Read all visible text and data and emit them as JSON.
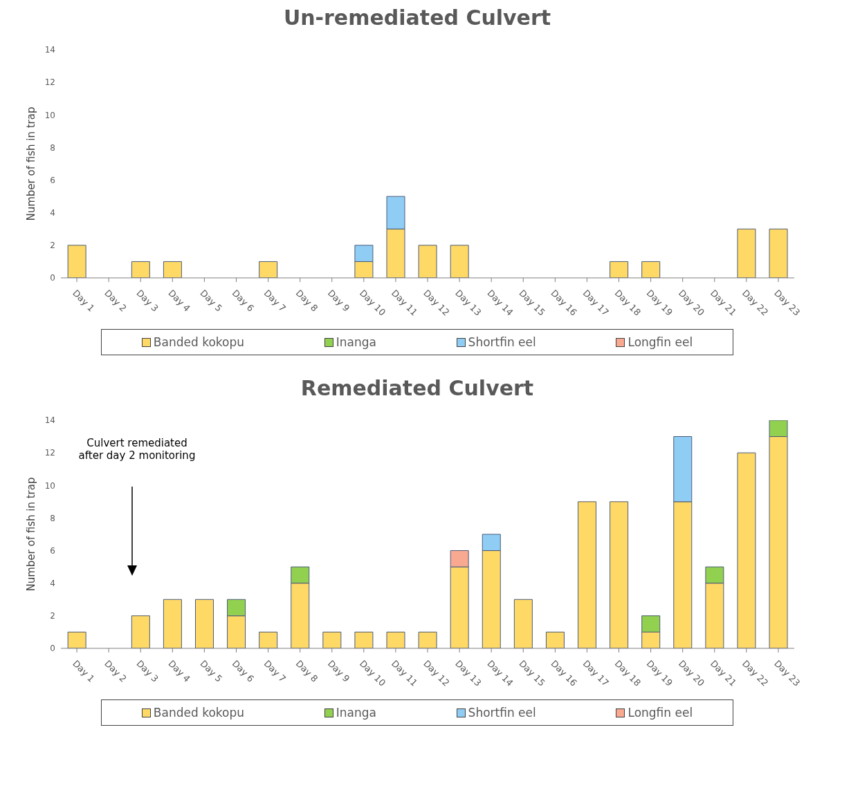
{
  "chart_data": [
    {
      "type": "bar",
      "title": "Un-remediated Culvert",
      "ylabel": "Number of fish in trap",
      "stacked": true,
      "legend": "bottom",
      "grid": false,
      "ylim": [
        0,
        14
      ],
      "yticks": [
        0,
        2,
        4,
        6,
        8,
        10,
        12,
        14
      ],
      "categories": [
        "Day 1",
        "Day 2",
        "Day 3",
        "Day 4",
        "Day 5",
        "Day 6",
        "Day 7",
        "Day 8",
        "Day 9",
        "Day 10",
        "Day 11",
        "Day 12",
        "Day 13",
        "Day 14",
        "Day 15",
        "Day 16",
        "Day 17",
        "Day 18",
        "Day 19",
        "Day 20",
        "Day 21",
        "Day 22",
        "Day 23"
      ],
      "series": [
        {
          "name": "Banded kokopu",
          "color": "#ffd966",
          "values": [
            2,
            0,
            1,
            1,
            0,
            0,
            1,
            0,
            0,
            1,
            3,
            2,
            2,
            0,
            0,
            0,
            0,
            1,
            1,
            0,
            0,
            3,
            3
          ]
        },
        {
          "name": "Inanga",
          "color": "#92d050",
          "values": [
            0,
            0,
            0,
            0,
            0,
            0,
            0,
            0,
            0,
            0,
            0,
            0,
            0,
            0,
            0,
            0,
            0,
            0,
            0,
            0,
            0,
            0,
            0
          ]
        },
        {
          "name": "Shortfin eel",
          "color": "#8fcdf5",
          "values": [
            0,
            0,
            0,
            0,
            0,
            0,
            0,
            0,
            0,
            1,
            2,
            0,
            0,
            0,
            0,
            0,
            0,
            0,
            0,
            0,
            0,
            0,
            0
          ]
        },
        {
          "name": "Longfin eel",
          "color": "#f8a98f",
          "values": [
            0,
            0,
            0,
            0,
            0,
            0,
            0,
            0,
            0,
            0,
            0,
            0,
            0,
            0,
            0,
            0,
            0,
            0,
            0,
            0,
            0,
            0,
            0
          ]
        }
      ]
    },
    {
      "type": "bar",
      "title": "Remediated Culvert",
      "ylabel": "Number of fish in trap",
      "stacked": true,
      "legend": "bottom",
      "grid": false,
      "ylim": [
        0,
        14
      ],
      "yticks": [
        0,
        2,
        4,
        6,
        8,
        10,
        12,
        14
      ],
      "annotations": [
        "Culvert remediated after day 2 monitoring"
      ],
      "categories": [
        "Day 1",
        "Day 2",
        "Day 3",
        "Day 4",
        "Day 5",
        "Day 6",
        "Day 7",
        "Day 8",
        "Day 9",
        "Day 10",
        "Day 11",
        "Day 12",
        "Day 13",
        "Day 14",
        "Day 15",
        "Day 16",
        "Day 17",
        "Day 18",
        "Day 19",
        "Day 20",
        "Day 21",
        "Day 22",
        "Day 23"
      ],
      "series": [
        {
          "name": "Banded kokopu",
          "color": "#ffd966",
          "values": [
            1,
            0,
            2,
            3,
            3,
            2,
            1,
            4,
            1,
            1,
            1,
            1,
            5,
            6,
            3,
            1,
            9,
            9,
            1,
            9,
            4,
            12,
            13
          ]
        },
        {
          "name": "Inanga",
          "color": "#92d050",
          "values": [
            0,
            0,
            0,
            0,
            0,
            1,
            0,
            1,
            0,
            0,
            0,
            0,
            0,
            0,
            0,
            0,
            0,
            0,
            1,
            0,
            1,
            0,
            1
          ]
        },
        {
          "name": "Shortfin eel",
          "color": "#8fcdf5",
          "values": [
            0,
            0,
            0,
            0,
            0,
            0,
            0,
            0,
            0,
            0,
            0,
            0,
            0,
            1,
            0,
            0,
            0,
            0,
            0,
            4,
            0,
            0,
            0
          ]
        },
        {
          "name": "Longfin eel",
          "color": "#f8a98f",
          "values": [
            0,
            0,
            0,
            0,
            0,
            0,
            0,
            0,
            0,
            0,
            0,
            0,
            1,
            0,
            0,
            0,
            0,
            0,
            0,
            0,
            0,
            0,
            0
          ]
        }
      ]
    }
  ]
}
